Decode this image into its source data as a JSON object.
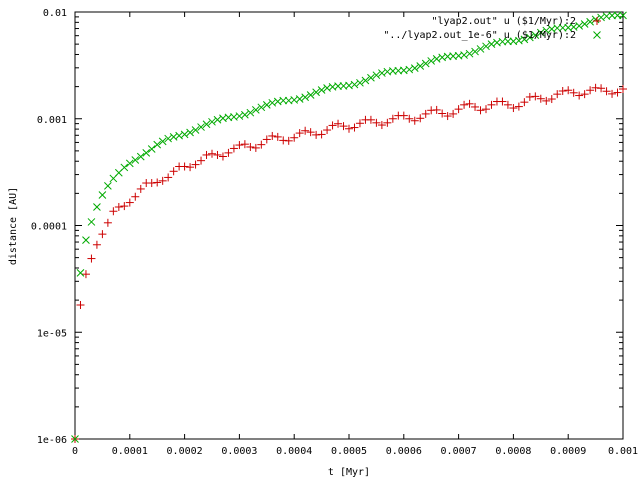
{
  "chart_data": {
    "type": "scatter",
    "xlabel": "t [Myr]",
    "ylabel": "distance [AU]",
    "xlim": [
      0,
      0.001
    ],
    "ylim": [
      1e-06,
      0.01
    ],
    "y_scale": "log",
    "grid": false,
    "legend_position": "top-right",
    "x_ticks": [
      "0",
      "0.0001",
      "0.0002",
      "0.0003",
      "0.0004",
      "0.0005",
      "0.0006",
      "0.0007",
      "0.0008",
      "0.0009",
      "0.001"
    ],
    "y_ticks": [
      "1e-06",
      "1e-05",
      "0.0001",
      "0.001",
      "0.01"
    ],
    "series": [
      {
        "name": "\"lyap2.out\" u ($1/Myr):2",
        "marker": "plus",
        "color": "#cc0000",
        "x": [
          0,
          1e-05,
          2e-05,
          3e-05,
          4e-05,
          5e-05,
          6e-05,
          7e-05,
          8e-05,
          9e-05,
          0.0001,
          0.00011,
          0.00012,
          0.00013,
          0.00014,
          0.00015,
          0.00016,
          0.00017,
          0.00018,
          0.00019,
          0.0002,
          0.00021,
          0.00022,
          0.00023,
          0.00024,
          0.00025,
          0.00026,
          0.00027,
          0.00028,
          0.00029,
          0.0003,
          0.00031,
          0.00032,
          0.00033,
          0.00034,
          0.00035,
          0.00036,
          0.00037,
          0.00038,
          0.00039,
          0.0004,
          0.00041,
          0.00042,
          0.00043,
          0.00044,
          0.00045,
          0.00046,
          0.00047,
          0.00048,
          0.00049,
          0.0005,
          0.00051,
          0.00052,
          0.00053,
          0.00054,
          0.00055,
          0.00056,
          0.00057,
          0.00058,
          0.00059,
          0.0006,
          0.00061,
          0.00062,
          0.00063,
          0.00064,
          0.00065,
          0.00066,
          0.00067,
          0.00068,
          0.00069,
          0.0007,
          0.00071,
          0.00072,
          0.00073,
          0.00074,
          0.00075,
          0.00076,
          0.00077,
          0.00078,
          0.00079,
          0.0008,
          0.00081,
          0.00082,
          0.00083,
          0.00084,
          0.00085,
          0.00086,
          0.00087,
          0.00088,
          0.00089,
          0.0009,
          0.00091,
          0.00092,
          0.00093,
          0.00094,
          0.00095,
          0.00096,
          0.00097,
          0.00098,
          0.00099,
          0.001
        ],
        "y": [
          1e-06,
          1.8e-05,
          3.5e-05,
          4.9e-05,
          6.6e-05,
          8.3e-05,
          0.000106,
          0.000136,
          0.000149,
          0.000152,
          0.000164,
          0.000186,
          0.00022,
          0.00025,
          0.00025,
          0.000253,
          0.000262,
          0.000282,
          0.000322,
          0.000357,
          0.000357,
          0.000352,
          0.000372,
          0.000405,
          0.000458,
          0.00047,
          0.000458,
          0.000443,
          0.000479,
          0.000527,
          0.000567,
          0.000578,
          0.000544,
          0.000533,
          0.000572,
          0.00064,
          0.00069,
          0.000676,
          0.000627,
          0.000621,
          0.000664,
          0.000734,
          0.000772,
          0.000749,
          0.000706,
          0.000713,
          0.000784,
          0.000866,
          0.000898,
          0.000853,
          0.000806,
          0.000827,
          0.000907,
          0.000977,
          0.000977,
          0.000916,
          0.000873,
          0.000916,
          0.001,
          0.00107,
          0.00107,
          0.001,
          0.000958,
          0.00101,
          0.00111,
          0.0012,
          0.00121,
          0.00112,
          0.00106,
          0.00111,
          0.00123,
          0.00135,
          0.00138,
          0.00129,
          0.0012,
          0.00123,
          0.00135,
          0.00145,
          0.00145,
          0.00135,
          0.00126,
          0.0013,
          0.00143,
          0.0016,
          0.00162,
          0.00154,
          0.00147,
          0.00153,
          0.0017,
          0.00182,
          0.00185,
          0.00175,
          0.00165,
          0.0017,
          0.00185,
          0.00195,
          0.00193,
          0.00181,
          0.00171,
          0.00176,
          0.0019
        ]
      },
      {
        "name": "\"../lyap2.out_1e-6\" u ($1/Myr):2",
        "marker": "cross",
        "color": "#00aa00",
        "x": [
          0,
          1e-05,
          2e-05,
          3e-05,
          4e-05,
          5e-05,
          6e-05,
          7e-05,
          8e-05,
          9e-05,
          0.0001,
          0.00011,
          0.00012,
          0.00013,
          0.00014,
          0.00015,
          0.00016,
          0.00017,
          0.00018,
          0.00019,
          0.0002,
          0.00021,
          0.00022,
          0.00023,
          0.00024,
          0.00025,
          0.00026,
          0.00027,
          0.00028,
          0.00029,
          0.0003,
          0.00031,
          0.00032,
          0.00033,
          0.00034,
          0.00035,
          0.00036,
          0.00037,
          0.00038,
          0.00039,
          0.0004,
          0.00041,
          0.00042,
          0.00043,
          0.00044,
          0.00045,
          0.00046,
          0.00047,
          0.00048,
          0.00049,
          0.0005,
          0.00051,
          0.00052,
          0.00053,
          0.00054,
          0.00055,
          0.00056,
          0.00057,
          0.00058,
          0.00059,
          0.0006,
          0.00061,
          0.00062,
          0.00063,
          0.00064,
          0.00065,
          0.00066,
          0.00067,
          0.00068,
          0.00069,
          0.0007,
          0.00071,
          0.00072,
          0.00073,
          0.00074,
          0.00075,
          0.00076,
          0.00077,
          0.00078,
          0.00079,
          0.0008,
          0.00081,
          0.00082,
          0.00083,
          0.00084,
          0.00085,
          0.00086,
          0.00087,
          0.00088,
          0.00089,
          0.0009,
          0.00091,
          0.00092,
          0.00093,
          0.00094,
          0.00095,
          0.00096,
          0.00097,
          0.00098,
          0.00099,
          0.001
        ],
        "y": [
          1e-06,
          3.6e-05,
          7.3e-05,
          0.000108,
          0.000149,
          0.000193,
          0.000235,
          0.000276,
          0.000312,
          0.00035,
          0.000382,
          0.000411,
          0.000442,
          0.000479,
          0.000521,
          0.000572,
          0.000614,
          0.000652,
          0.000676,
          0.000695,
          0.000714,
          0.000744,
          0.000784,
          0.000836,
          0.000888,
          0.000936,
          0.000979,
          0.00101,
          0.00103,
          0.00104,
          0.00106,
          0.00109,
          0.00114,
          0.00121,
          0.00128,
          0.00135,
          0.00141,
          0.00145,
          0.00148,
          0.00148,
          0.0015,
          0.00153,
          0.00159,
          0.00167,
          0.00177,
          0.00186,
          0.00194,
          0.00199,
          0.00202,
          0.00203,
          0.00205,
          0.00209,
          0.00217,
          0.00228,
          0.00242,
          0.00256,
          0.00268,
          0.00276,
          0.0028,
          0.00282,
          0.00284,
          0.00289,
          0.00298,
          0.00312,
          0.00329,
          0.00348,
          0.00364,
          0.00376,
          0.00383,
          0.00386,
          0.00389,
          0.00395,
          0.00407,
          0.00426,
          0.00451,
          0.00477,
          0.005,
          0.00517,
          0.00527,
          0.0053,
          0.00532,
          0.00539,
          0.00554,
          0.00577,
          0.00607,
          0.00641,
          0.0067,
          0.00693,
          0.00707,
          0.00711,
          0.00714,
          0.00723,
          0.00742,
          0.00772,
          0.00811,
          0.00853,
          0.00889,
          0.00914,
          0.00927,
          0.00929,
          0.00929
        ]
      }
    ]
  }
}
